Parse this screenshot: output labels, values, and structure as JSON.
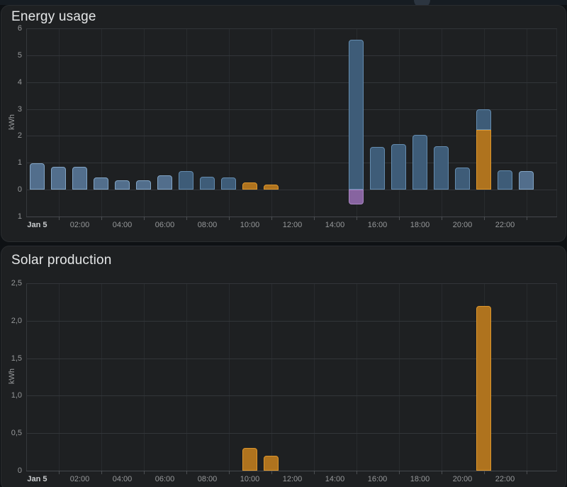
{
  "cards": [
    {
      "title": "Energy usage"
    },
    {
      "title": "Solar production"
    }
  ],
  "chart_data": [
    {
      "type": "bar",
      "stacked": true,
      "title": "Energy usage",
      "xlabel": "",
      "ylabel": "kWh",
      "ylim": [
        -1,
        6
      ],
      "grid": true,
      "legend": "none",
      "series_colors": {
        "tariff_low": {
          "fill": "#526e8c",
          "border": "#82a5c6"
        },
        "tariff_high": {
          "fill": "#3e5c78",
          "border": "#648caf"
        },
        "solar": {
          "fill": "#af731e",
          "border": "#dc962d"
        },
        "grid_return": {
          "fill": "#8764a0",
          "border": "#aa87c3"
        }
      },
      "yticks": [
        {
          "value": 6,
          "label": "6"
        },
        {
          "value": 5,
          "label": "5"
        },
        {
          "value": 4,
          "label": "4"
        },
        {
          "value": 3,
          "label": "3"
        },
        {
          "value": 2,
          "label": "2"
        },
        {
          "value": 1,
          "label": "1"
        },
        {
          "value": 0,
          "label": "0"
        },
        {
          "value": -1,
          "label": "1"
        }
      ],
      "xticks": [
        {
          "hour": 0,
          "label": "Jan 5",
          "bold": true
        },
        {
          "hour": 2,
          "label": "02:00"
        },
        {
          "hour": 4,
          "label": "04:00"
        },
        {
          "hour": 6,
          "label": "06:00"
        },
        {
          "hour": 8,
          "label": "08:00"
        },
        {
          "hour": 10,
          "label": "10:00"
        },
        {
          "hour": 12,
          "label": "12:00"
        },
        {
          "hour": 14,
          "label": "14:00"
        },
        {
          "hour": 16,
          "label": "16:00"
        },
        {
          "hour": 18,
          "label": "18:00"
        },
        {
          "hour": 20,
          "label": "20:00"
        },
        {
          "hour": 22,
          "label": "22:00"
        }
      ],
      "bars": [
        {
          "hour": 0,
          "segments": [
            {
              "series": "tariff_low",
              "value": 0.98
            }
          ]
        },
        {
          "hour": 1,
          "segments": [
            {
              "series": "tariff_low",
              "value": 0.86
            }
          ]
        },
        {
          "hour": 2,
          "segments": [
            {
              "series": "tariff_low",
              "value": 0.84
            }
          ]
        },
        {
          "hour": 3,
          "segments": [
            {
              "series": "tariff_low",
              "value": 0.46
            }
          ]
        },
        {
          "hour": 4,
          "segments": [
            {
              "series": "tariff_low",
              "value": 0.36
            }
          ]
        },
        {
          "hour": 5,
          "segments": [
            {
              "series": "tariff_low",
              "value": 0.34
            }
          ]
        },
        {
          "hour": 6,
          "segments": [
            {
              "series": "tariff_low",
              "value": 0.52
            }
          ]
        },
        {
          "hour": 7,
          "segments": [
            {
              "series": "tariff_high",
              "value": 0.69
            }
          ]
        },
        {
          "hour": 8,
          "segments": [
            {
              "series": "tariff_high",
              "value": 0.48
            }
          ]
        },
        {
          "hour": 9,
          "segments": [
            {
              "series": "tariff_high",
              "value": 0.44
            }
          ]
        },
        {
          "hour": 10,
          "segments": [
            {
              "series": "solar",
              "value": 0.27
            }
          ]
        },
        {
          "hour": 11,
          "segments": [
            {
              "series": "solar",
              "value": 0.2
            }
          ]
        },
        {
          "hour": 15,
          "segments": [
            {
              "series": "tariff_high",
              "value": 5.58
            },
            {
              "series": "grid_return",
              "value": -0.54
            }
          ]
        },
        {
          "hour": 16,
          "segments": [
            {
              "series": "tariff_high",
              "value": 1.58
            }
          ]
        },
        {
          "hour": 17,
          "segments": [
            {
              "series": "tariff_high",
              "value": 1.7
            }
          ]
        },
        {
          "hour": 18,
          "segments": [
            {
              "series": "tariff_high",
              "value": 2.03
            }
          ]
        },
        {
          "hour": 19,
          "segments": [
            {
              "series": "tariff_high",
              "value": 1.62
            }
          ]
        },
        {
          "hour": 20,
          "segments": [
            {
              "series": "tariff_high",
              "value": 0.82
            }
          ]
        },
        {
          "hour": 21,
          "segments": [
            {
              "series": "solar",
              "value": 2.22
            },
            {
              "series": "tariff_high",
              "value": 0.78
            }
          ]
        },
        {
          "hour": 22,
          "segments": [
            {
              "series": "tariff_high",
              "value": 0.72
            }
          ]
        },
        {
          "hour": 23,
          "segments": [
            {
              "series": "tariff_low",
              "value": 0.7
            }
          ]
        }
      ]
    },
    {
      "type": "bar",
      "stacked": false,
      "title": "Solar production",
      "xlabel": "",
      "ylabel": "kWh",
      "ylim": [
        0,
        2.5
      ],
      "grid": true,
      "legend": "none",
      "series_colors": {
        "solar": {
          "fill": "#af731e",
          "border": "#dc962d"
        }
      },
      "yticks": [
        {
          "value": 2.5,
          "label": "2,5"
        },
        {
          "value": 2.0,
          "label": "2,0"
        },
        {
          "value": 1.5,
          "label": "1,5"
        },
        {
          "value": 1.0,
          "label": "1,0"
        },
        {
          "value": 0.5,
          "label": "0,5"
        },
        {
          "value": 0,
          "label": "0"
        }
      ],
      "xticks": [
        {
          "hour": 0,
          "label": "Jan 5",
          "bold": true
        },
        {
          "hour": 2,
          "label": "02:00"
        },
        {
          "hour": 4,
          "label": "04:00"
        },
        {
          "hour": 6,
          "label": "06:00"
        },
        {
          "hour": 8,
          "label": "08:00"
        },
        {
          "hour": 10,
          "label": "10:00"
        },
        {
          "hour": 12,
          "label": "12:00"
        },
        {
          "hour": 14,
          "label": "14:00"
        },
        {
          "hour": 16,
          "label": "16:00"
        },
        {
          "hour": 18,
          "label": "18:00"
        },
        {
          "hour": 20,
          "label": "20:00"
        },
        {
          "hour": 22,
          "label": "22:00"
        }
      ],
      "bars": [
        {
          "hour": 10,
          "segments": [
            {
              "series": "solar",
              "value": 0.3
            }
          ]
        },
        {
          "hour": 11,
          "segments": [
            {
              "series": "solar",
              "value": 0.2
            }
          ]
        },
        {
          "hour": 21,
          "segments": [
            {
              "series": "solar",
              "value": 2.2
            }
          ]
        }
      ]
    }
  ]
}
